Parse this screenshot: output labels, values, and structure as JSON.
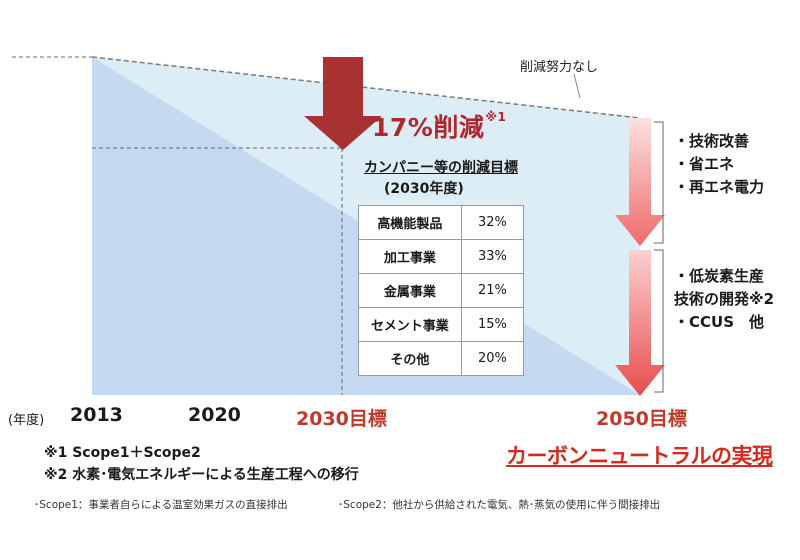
{
  "labels": {
    "no_reduction_effort": "削減努力なし",
    "reduction_main": "17%削減",
    "reduction_note_mark": "※1"
  },
  "table": {
    "title": "カンパニー等の削減目標",
    "subtitle": "(2030年度)",
    "rows": [
      {
        "label": "高機能製品",
        "value": "32%"
      },
      {
        "label": "加工事業",
        "value": "33%"
      },
      {
        "label": "金属事業",
        "value": "21%"
      },
      {
        "label": "セメント事業",
        "value": "15%"
      },
      {
        "label": "その他",
        "value": "20%"
      }
    ]
  },
  "measures_group1": [
    "・技術改善",
    "・省エネ",
    "・再エネ電力"
  ],
  "measures_group2": [
    "・低炭素生産",
    "技術の開発※2",
    "・CCUS　他"
  ],
  "axis": {
    "year_label": "(年度)",
    "ticks": [
      "2013",
      "2020",
      "2030目標",
      "2050目標"
    ]
  },
  "notes": {
    "note1": "※1 Scope1＋Scope2",
    "note2": "※2 水素･電気エネルギーによる生産工程への移行",
    "carbon_neutral": "カーボンニュートラルの実現",
    "scope1_def": "･Scope1：事業者自らによる温室効果ガスの直接排出",
    "scope2_def": "･Scope2：他社から供給された電気、熱･蒸気の使用に伴う間接排出"
  },
  "colors": {
    "blue_area": "#c5d9f0",
    "light_area": "#dcedf6",
    "dark_red_arrow": "#a83232",
    "pink_arrow": "#f07a7a",
    "accent_red": "#d32a1e"
  }
}
